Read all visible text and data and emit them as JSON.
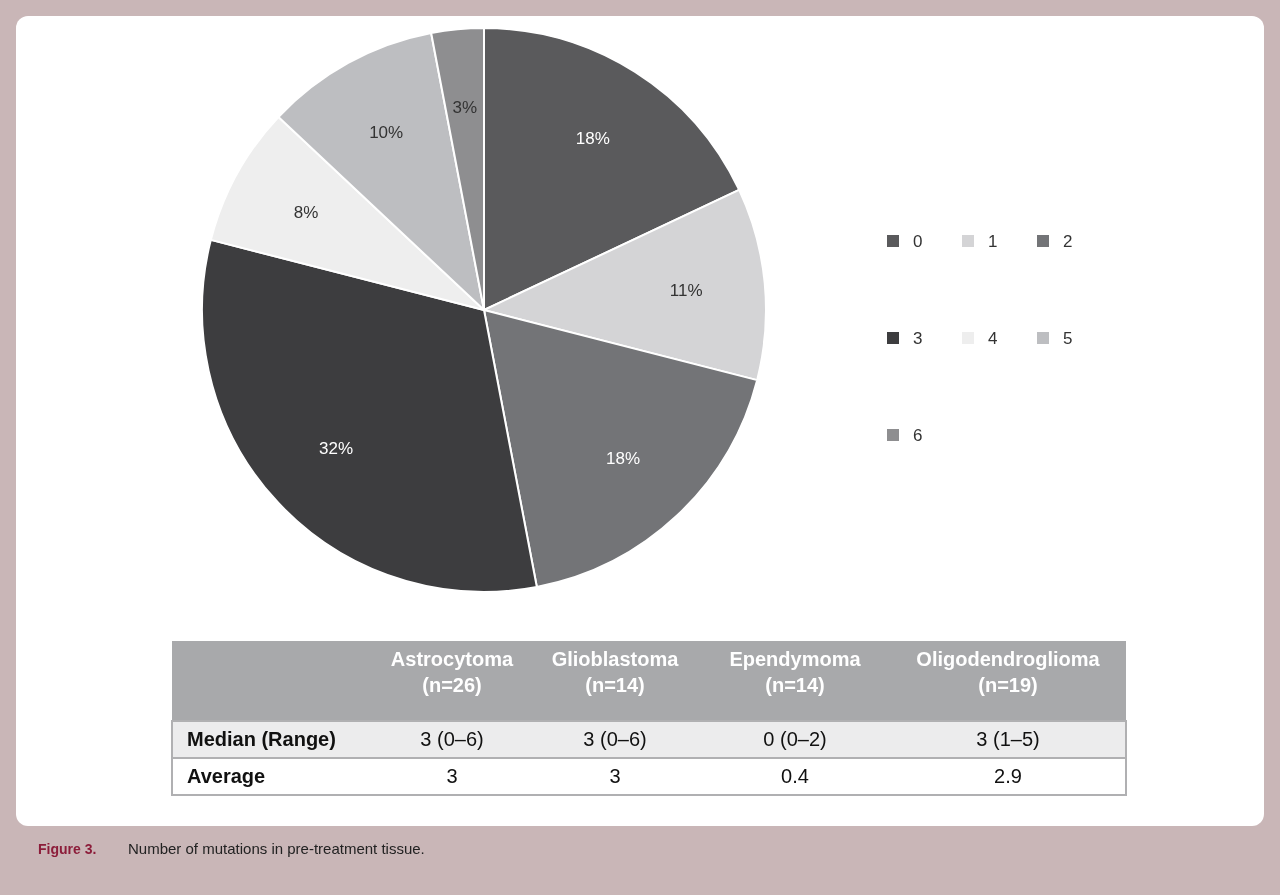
{
  "chart_data": [
    {
      "type": "pie",
      "categories": [
        "0",
        "1",
        "2",
        "3",
        "4",
        "5",
        "6"
      ],
      "values": [
        18,
        11,
        18,
        32,
        8,
        10,
        3
      ],
      "colors": [
        "#5a5a5c",
        "#d4d4d6",
        "#737477",
        "#3d3d3f",
        "#eeeeee",
        "#bdbec1",
        "#8e8e90"
      ],
      "value_labels": [
        "18%",
        "11%",
        "18%",
        "32%",
        "8%",
        "10%",
        "3%"
      ],
      "legend": "right",
      "annotations": [
        "Figure 3.",
        "Number of mutations in pre-treatment tissue."
      ]
    },
    {
      "type": "other",
      "annotations": [
        "Astrocytoma (n=26)",
        "Glioblastoma (n=14)",
        "Ependymoma (n=14)",
        "Oligodendroglioma (n=19)",
        "Median (Range)",
        "3 (0–6)",
        "3 (0–6)",
        "0 (0–2)",
        "3 (1–5)",
        "Average",
        "3",
        "3",
        "0.4",
        "2.9"
      ]
    }
  ]
}
